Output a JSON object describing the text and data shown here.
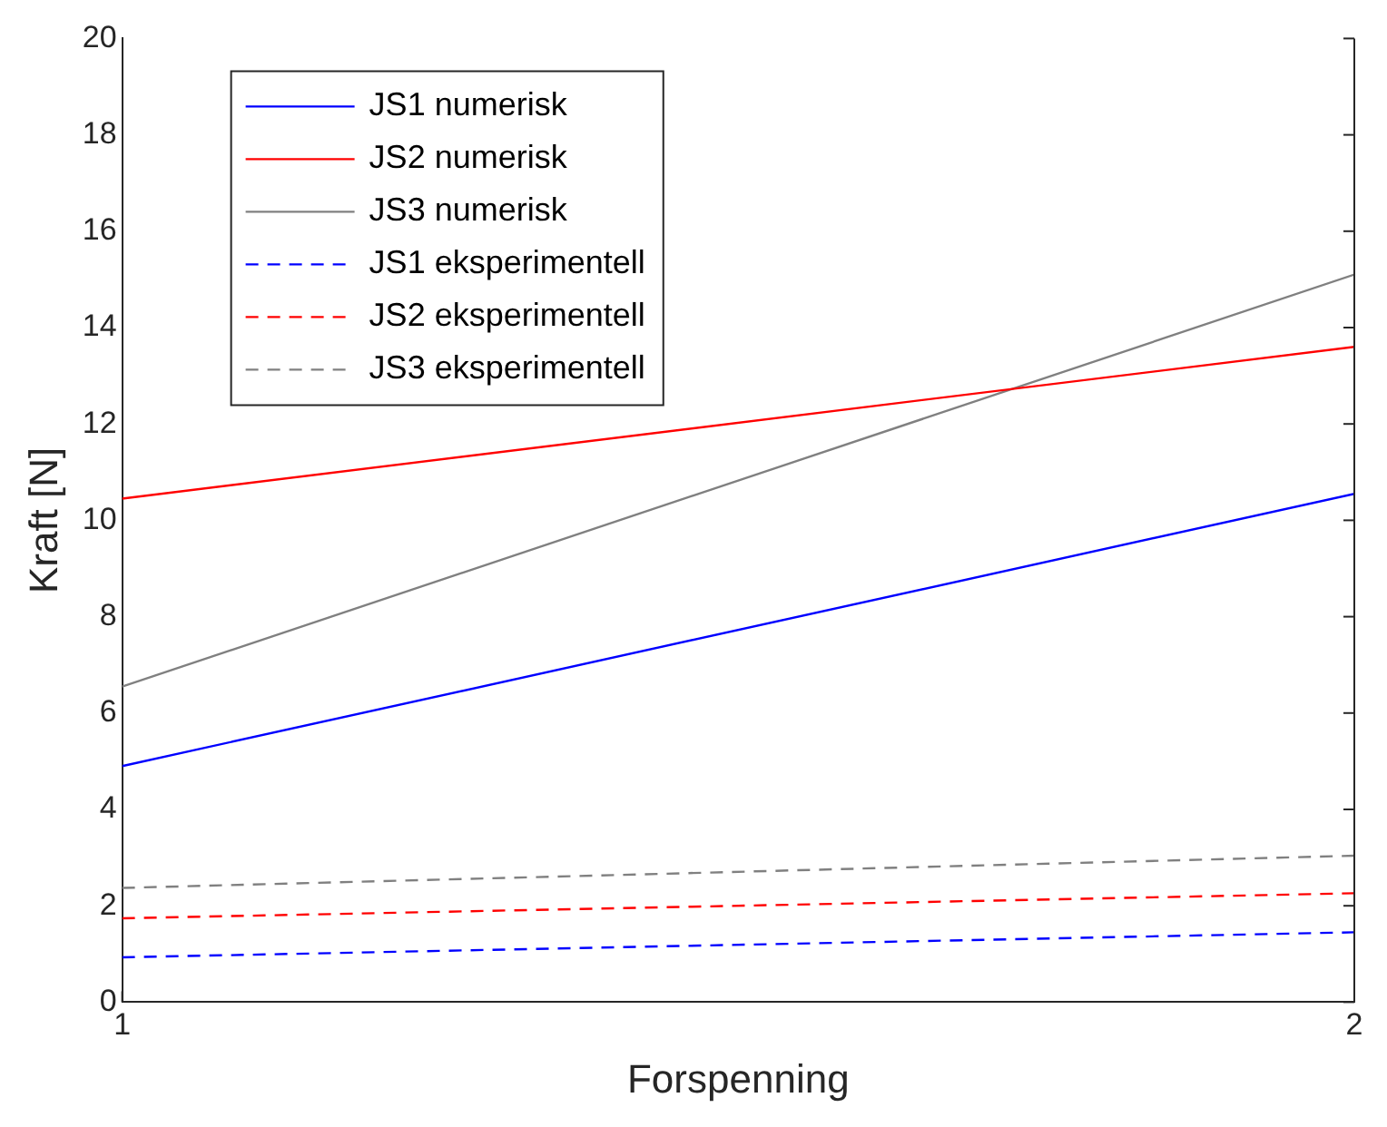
{
  "chart_data": {
    "type": "line",
    "xlabel": "Forspenning",
    "ylabel": "Kraft [N]",
    "x": [
      1,
      2
    ],
    "xlim": [
      1,
      2
    ],
    "xticks": [
      1,
      2
    ],
    "ylim": [
      0,
      20
    ],
    "yticks": [
      0,
      2,
      4,
      6,
      8,
      10,
      12,
      14,
      16,
      18,
      20
    ],
    "grid": false,
    "legend": "top left",
    "marker": "none",
    "series": [
      {
        "name": "JS1 numerisk",
        "color": "#0000ff",
        "values": [
          4.9,
          10.55
        ],
        "line_style": "solid"
      },
      {
        "name": "JS2 numerisk",
        "color": "#ff0000",
        "values": [
          10.45,
          13.6
        ],
        "line_style": "solid"
      },
      {
        "name": "JS3 numerisk",
        "color": "#808080",
        "values": [
          6.55,
          15.1
        ],
        "line_style": "solid"
      },
      {
        "name": "JS1 eksperimentell",
        "color": "#0000ff",
        "values": [
          0.93,
          1.45
        ],
        "line_style": "dashed"
      },
      {
        "name": "JS2 eksperimentell",
        "color": "#ff0000",
        "values": [
          1.74,
          2.26
        ],
        "line_style": "dashed"
      },
      {
        "name": "JS3 eksperimentell",
        "color": "#808080",
        "values": [
          2.37,
          3.04
        ],
        "line_style": "dashed"
      }
    ]
  }
}
